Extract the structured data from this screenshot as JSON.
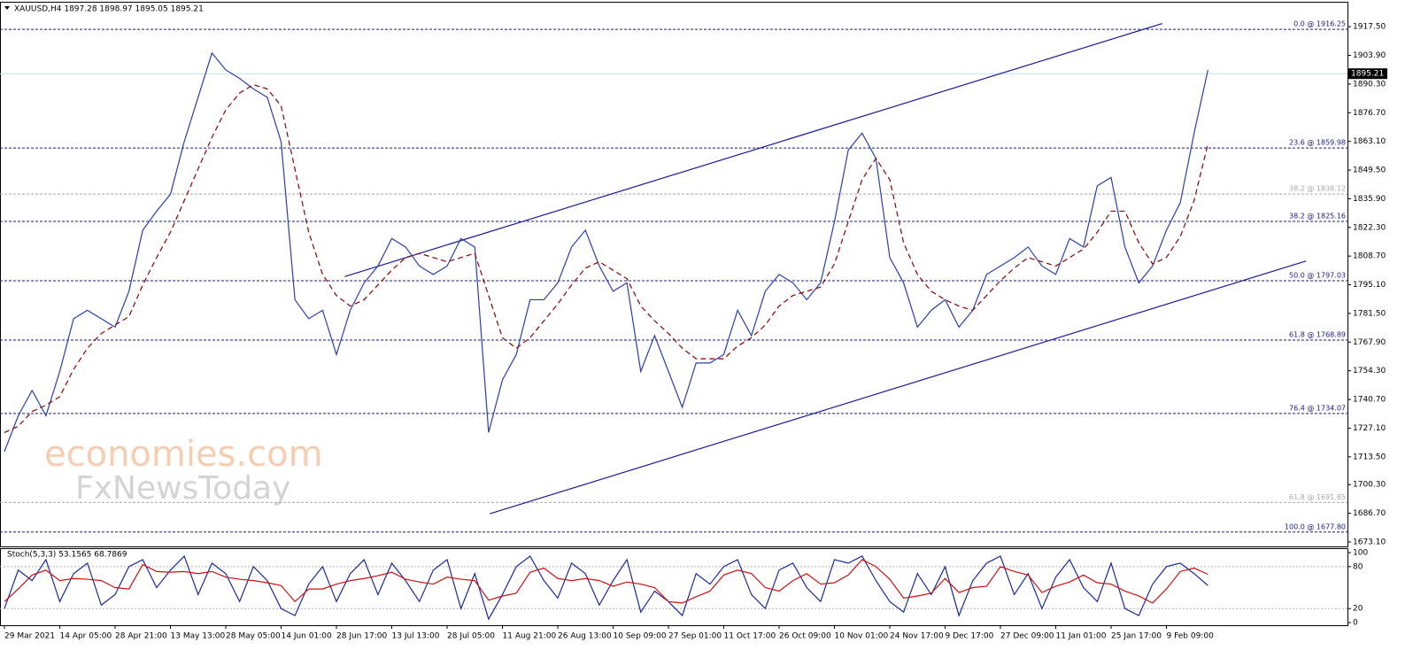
{
  "chart_data": [
    {
      "type": "line",
      "title": "XAUUSD,H4  1897.28 1898.97 1895.05 1895.21",
      "watermark": [
        "economies.com",
        "FxNewsToday"
      ],
      "categories": [
        "29 Mar 2021",
        null,
        null,
        null,
        "14 Apr 05:00",
        null,
        null,
        null,
        "28 Apr 21:00",
        null,
        null,
        null,
        "13 May 13:00",
        null,
        null,
        null,
        "28 May 05:00",
        null,
        null,
        null,
        "14 Jun 01:00",
        null,
        null,
        null,
        "28 Jun 17:00",
        null,
        null,
        null,
        "13 Jul 13:00",
        null,
        null,
        null,
        "28 Jul 05:00",
        null,
        null,
        null,
        "11 Aug 21:00",
        null,
        null,
        null,
        "26 Aug 13:00",
        null,
        null,
        null,
        "10 Sep 09:00",
        null,
        null,
        null,
        "27 Sep 01:00",
        null,
        null,
        null,
        "11 Oct 17:00",
        null,
        null,
        null,
        "26 Oct 09:00",
        null,
        null,
        null,
        "10 Nov 01:00",
        null,
        null,
        null,
        "24 Nov 17:00",
        null,
        null,
        null,
        "9 Dec 17:00",
        null,
        null,
        null,
        "27 Dec 09:00",
        null,
        null,
        null,
        "11 Jan 01:00",
        null,
        null,
        null,
        "25 Jan 17:00",
        null,
        null,
        null,
        "9 Feb 09:00",
        null,
        null,
        null
      ],
      "series": [
        {
          "color": "#2a3fae",
          "values": [
            1716,
            1733,
            1745,
            1733,
            1754,
            1779,
            1783,
            1779,
            1775,
            1792,
            1821,
            1830,
            1838,
            1863,
            1884,
            1905,
            1897,
            1893,
            1888,
            1884,
            1863,
            1788,
            1779,
            1783,
            1762,
            1783,
            1796,
            1804,
            1817,
            1813,
            1804,
            1800,
            1804,
            1817,
            1813,
            1725,
            1750,
            1762,
            1788,
            1788,
            1796,
            1813,
            1821,
            1804,
            1792,
            1796,
            1754,
            1771,
            1754,
            1737,
            1758,
            1758,
            1762,
            1783,
            1771,
            1792,
            1800,
            1796,
            1788,
            1796,
            1825,
            1859,
            1867,
            1855,
            1808,
            1796,
            1775,
            1783,
            1788,
            1775,
            1783,
            1800,
            1804,
            1808,
            1813,
            1804,
            1800,
            1817,
            1813,
            1842,
            1846,
            1813,
            1796,
            1804,
            1821,
            1834,
            1867,
            1897
          ]
        },
        {
          "color": "#8b0000",
          "dashed": true,
          "values": [
            1725,
            1728,
            1735,
            1738,
            1742,
            1755,
            1765,
            1772,
            1776,
            1780,
            1795,
            1808,
            1820,
            1835,
            1850,
            1865,
            1878,
            1886,
            1890,
            1888,
            1880,
            1850,
            1820,
            1800,
            1790,
            1785,
            1788,
            1795,
            1802,
            1808,
            1810,
            1808,
            1806,
            1808,
            1810,
            1790,
            1770,
            1765,
            1770,
            1778,
            1786,
            1795,
            1803,
            1806,
            1802,
            1798,
            1785,
            1778,
            1772,
            1765,
            1760,
            1760,
            1760,
            1766,
            1770,
            1776,
            1785,
            1790,
            1792,
            1794,
            1805,
            1825,
            1845,
            1855,
            1845,
            1815,
            1800,
            1792,
            1788,
            1785,
            1783,
            1790,
            1797,
            1803,
            1808,
            1806,
            1804,
            1808,
            1812,
            1820,
            1830,
            1830,
            1815,
            1805,
            1808,
            1818,
            1835,
            1862
          ]
        }
      ],
      "ylim": [
        1671,
        1928.9
      ],
      "yticks": [
        {
          "value": 1917.5,
          "label": "1917.50"
        },
        {
          "value": 1903.9,
          "label": "1903.90"
        },
        {
          "value": 1890.3,
          "label": "1890.30"
        },
        {
          "value": 1876.7,
          "label": "1876.70"
        },
        {
          "value": 1863.1,
          "label": "1863.10"
        },
        {
          "value": 1849.5,
          "label": "1849.50"
        },
        {
          "value": 1835.9,
          "label": "1835.90"
        },
        {
          "value": 1822.3,
          "label": "1822.30"
        },
        {
          "value": 1808.7,
          "label": "1808.70"
        },
        {
          "value": 1795.1,
          "label": "1795.10"
        },
        {
          "value": 1781.5,
          "label": "1781.50"
        },
        {
          "value": 1767.9,
          "label": "1767.90"
        },
        {
          "value": 1754.3,
          "label": "1754.30"
        },
        {
          "value": 1740.7,
          "label": "1740.70"
        },
        {
          "value": 1727.1,
          "label": "1727.10"
        },
        {
          "value": 1713.5,
          "label": "1713.50"
        },
        {
          "value": 1700.3,
          "label": "1700.30"
        },
        {
          "value": 1686.7,
          "label": "1686.70"
        },
        {
          "value": 1673.1,
          "label": "1673.10"
        }
      ],
      "levels": [
        {
          "value": 1916.25,
          "label": "0.0 @ 1916.25",
          "color": "#1a1a8c"
        },
        {
          "value": 1859.98,
          "label": "23.6 @ 1859.98",
          "color": "#1a1a8c"
        },
        {
          "value": 1838.12,
          "label": "38.2 @ 1838.12",
          "color": "#a8a8a8"
        },
        {
          "value": 1825.16,
          "label": "38.2 @ 1825.16",
          "color": "#1a1a8c"
        },
        {
          "value": 1797.03,
          "label": "50.0 @ 1797.03",
          "color": "#1a1a8c"
        },
        {
          "value": 1768.89,
          "label": "61.8 @ 1768.89",
          "color": "#1a1a8c"
        },
        {
          "value": 1734.07,
          "label": "76.4 @ 1734.07",
          "color": "#1a1a8c"
        },
        {
          "value": 1691.85,
          "label": "61.8 @ 1691.85",
          "color": "#a8a8a8"
        },
        {
          "value": 1677.8,
          "label": "100.0 @ 1677.80",
          "color": "#1a1a8c"
        }
      ],
      "current_price": 1895.21,
      "trendlines": [
        {
          "color": "#1a1a9c",
          "x": [
            24.6,
            83.7
          ],
          "y": [
            1799,
            1919
          ]
        },
        {
          "color": "#1a1a9c",
          "x": [
            35.1,
            94.1
          ],
          "y": [
            1686.5,
            1806.4
          ]
        }
      ]
    },
    {
      "type": "line",
      "title": "Stoch(5,3,3) 53.1565 68.7869",
      "series": [
        {
          "color": "#1a2a9c",
          "values": [
            20,
            75,
            60,
            90,
            30,
            70,
            85,
            25,
            40,
            80,
            90,
            50,
            75,
            95,
            40,
            85,
            70,
            30,
            80,
            60,
            20,
            10,
            55,
            80,
            30,
            70,
            90,
            40,
            85,
            60,
            30,
            75,
            90,
            20,
            70,
            5,
            40,
            80,
            95,
            60,
            35,
            85,
            70,
            25,
            60,
            90,
            15,
            45,
            30,
            10,
            70,
            55,
            80,
            90,
            40,
            20,
            75,
            85,
            50,
            30,
            90,
            85,
            95,
            60,
            30,
            15,
            70,
            40,
            80,
            10,
            60,
            85,
            95,
            40,
            70,
            20,
            65,
            90,
            50,
            30,
            85,
            20,
            10,
            55,
            80,
            85,
            70,
            53
          ]
        },
        {
          "color": "#d01010",
          "values": [
            30,
            48,
            68,
            75,
            60,
            63,
            62,
            60,
            50,
            48,
            83,
            73,
            72,
            73,
            70,
            73,
            65,
            62,
            60,
            57,
            53,
            30,
            48,
            48,
            55,
            60,
            63,
            67,
            72,
            62,
            58,
            55,
            65,
            62,
            60,
            32,
            38,
            42,
            72,
            78,
            63,
            60,
            63,
            60,
            52,
            58,
            55,
            50,
            30,
            28,
            37,
            45,
            68,
            75,
            70,
            50,
            45,
            60,
            70,
            55,
            57,
            68,
            90,
            80,
            62,
            35,
            38,
            42,
            63,
            43,
            50,
            52,
            80,
            73,
            68,
            43,
            52,
            58,
            68,
            57,
            55,
            45,
            38,
            28,
            48,
            73,
            78,
            69
          ]
        }
      ],
      "ylim": [
        -3.8,
        105.1
      ],
      "yticks": [
        100,
        80,
        20,
        0
      ]
    }
  ]
}
